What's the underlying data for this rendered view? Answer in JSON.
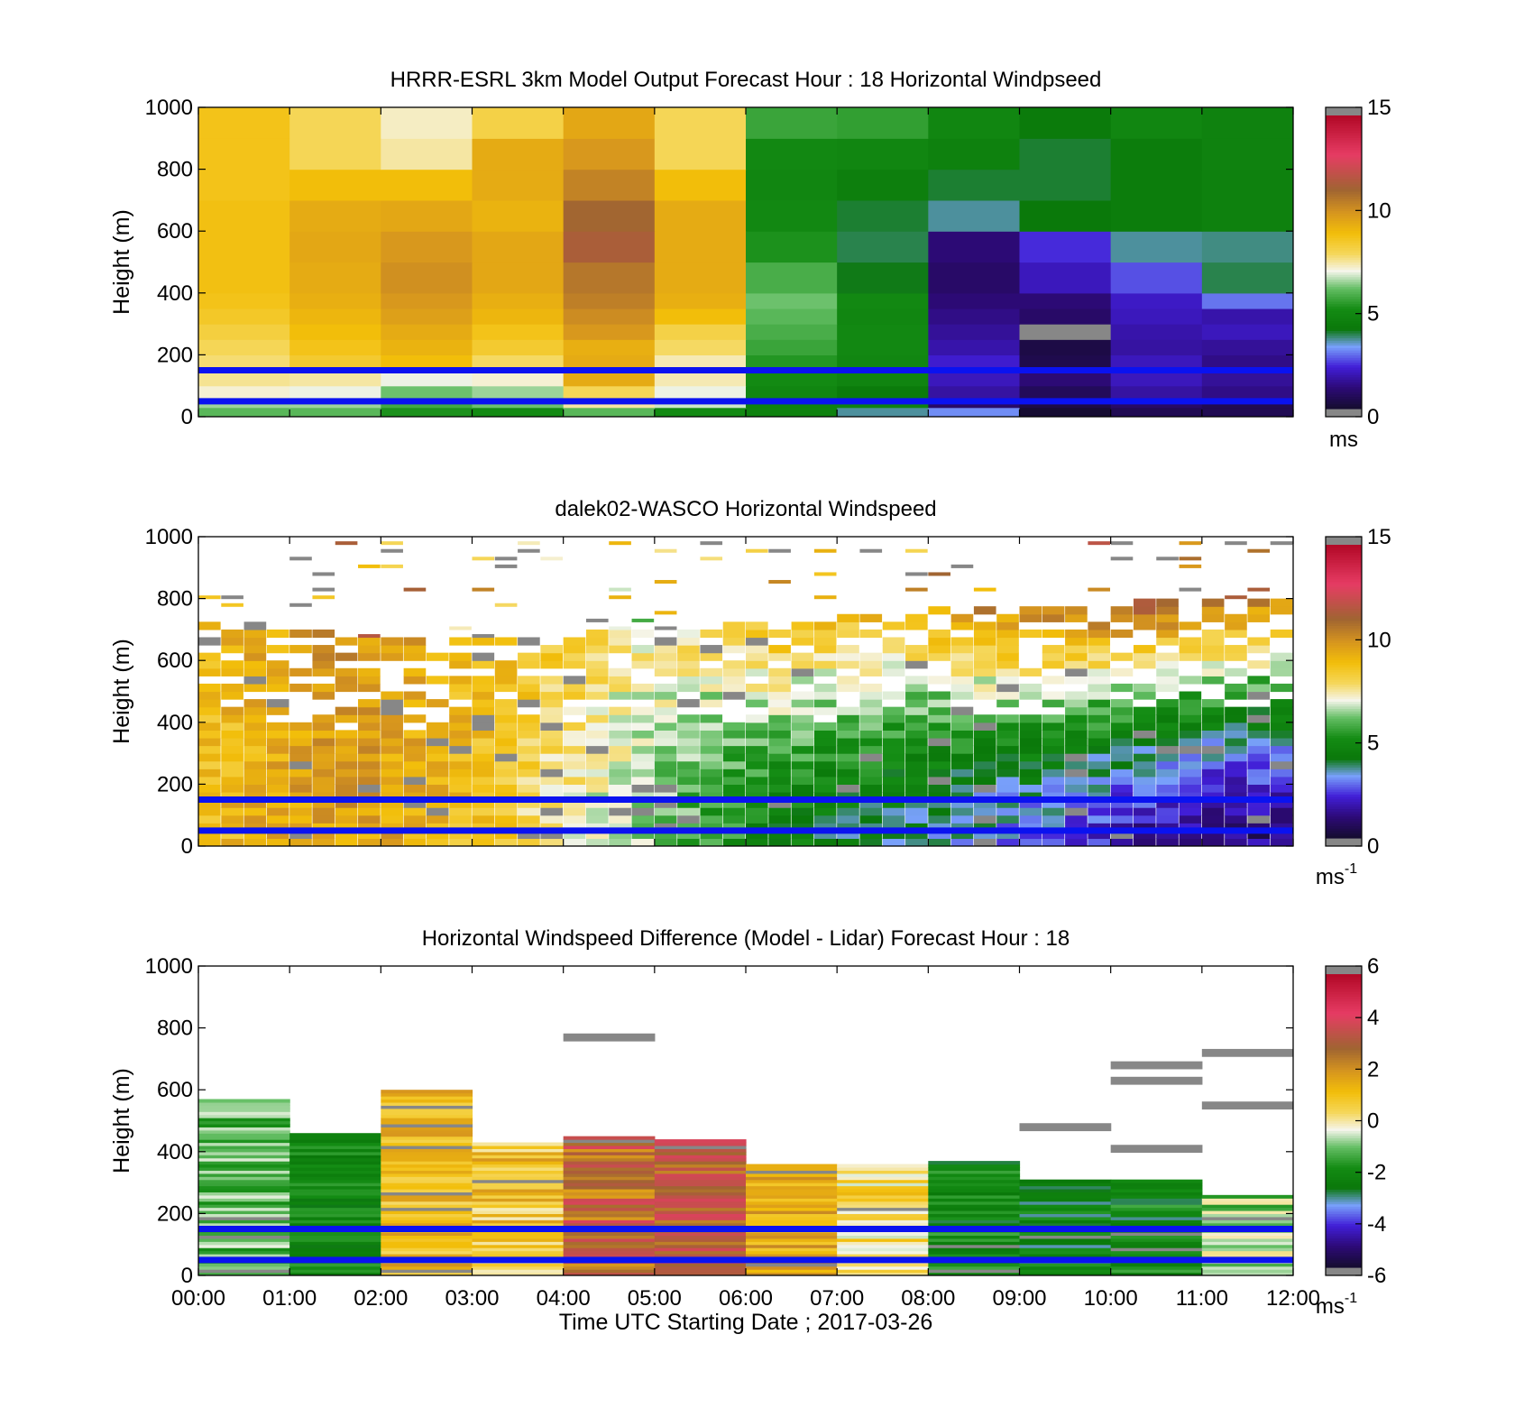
{
  "figure": {
    "xlabel": "Time UTC  Starting Date ; 2017-03-26",
    "x_tick_labels": [
      "00:00",
      "01:00",
      "02:00",
      "03:00",
      "04:00",
      "05:00",
      "06:00",
      "07:00",
      "08:00",
      "09:00",
      "10:00",
      "11:00",
      "12:00"
    ],
    "colors": {
      "reference_line": "#0a12f0",
      "missing": "#878787",
      "background": "#ffffff"
    }
  },
  "chart_data": [
    {
      "type": "heatmap",
      "title": "HRRR-ESRL 3km Model Output   Forecast Hour : 18 Horizontal Windpseed",
      "ylabel": "Height (m)",
      "xlim": [
        0,
        12
      ],
      "ylim": [
        0,
        1000
      ],
      "y_ticks": [
        0,
        200,
        400,
        600,
        800,
        1000
      ],
      "show_x_tick_labels": false,
      "reference_heights": [
        150,
        50
      ],
      "colorbar": {
        "min": 0,
        "max": 15,
        "ticks": [
          0,
          5,
          10,
          15
        ],
        "unit": "ms",
        "unit_exp": ""
      },
      "row_edges": [
        0,
        30,
        60,
        100,
        150,
        200,
        250,
        300,
        350,
        400,
        500,
        600,
        700,
        800,
        900,
        1000
      ],
      "values": [
        [
          6.0,
          6.0,
          5.2,
          5.0,
          6.0,
          5.0,
          4.6,
          3.5,
          3.0,
          0.0,
          0.5,
          0.5
        ],
        [
          6.5,
          6.5,
          5.7,
          6.2,
          7.5,
          6.8,
          4.5,
          4.6,
          0.8,
          0.3,
          0.8,
          0.5
        ],
        [
          7.2,
          7.0,
          6.2,
          6.5,
          8.0,
          7.0,
          4.8,
          4.2,
          1.5,
          0.6,
          1.5,
          1.2
        ],
        [
          7.6,
          7.5,
          7.0,
          7.2,
          9.5,
          7.4,
          5.0,
          4.7,
          1.8,
          1.0,
          1.8,
          1.4
        ],
        [
          7.8,
          8.5,
          9.0,
          7.9,
          9.5,
          7.4,
          5.3,
          4.8,
          2.0,
          0.4,
          1.8,
          1.2
        ],
        [
          8.0,
          8.8,
          9.3,
          8.5,
          9.4,
          7.9,
          5.6,
          4.9,
          1.6,
          0.3,
          1.5,
          1.4
        ],
        [
          8.3,
          9.0,
          9.5,
          8.8,
          10.0,
          8.2,
          5.8,
          4.9,
          1.4,
          null,
          1.6,
          1.8
        ],
        [
          8.6,
          9.2,
          9.8,
          9.2,
          10.3,
          9.0,
          6.0,
          4.8,
          1.2,
          0.8,
          1.8,
          1.6
        ],
        [
          8.8,
          9.4,
          10.0,
          9.4,
          10.6,
          9.4,
          6.2,
          4.9,
          1.0,
          1.0,
          1.9,
          2.8
        ],
        [
          8.9,
          9.5,
          10.2,
          9.6,
          10.8,
          9.5,
          5.8,
          4.0,
          0.8,
          1.8,
          2.5,
          3.8
        ],
        [
          8.9,
          9.6,
          10.0,
          9.6,
          11.5,
          9.5,
          5.2,
          3.8,
          1.0,
          2.2,
          3.5,
          3.6
        ],
        [
          8.9,
          9.5,
          9.6,
          9.3,
          11.2,
          9.5,
          4.9,
          3.9,
          3.5,
          4.1,
          4.3,
          4.5
        ],
        [
          8.8,
          9.0,
          9.0,
          9.5,
          10.5,
          9.0,
          4.8,
          4.4,
          3.9,
          3.9,
          4.3,
          4.5
        ],
        [
          8.8,
          8.0,
          7.5,
          9.5,
          10.0,
          8.0,
          4.9,
          4.8,
          4.5,
          3.9,
          4.3,
          4.6
        ],
        [
          8.8,
          8.0,
          7.3,
          8.2,
          9.6,
          8.0,
          5.6,
          5.5,
          4.8,
          4.2,
          4.8,
          4.6
        ]
      ]
    },
    {
      "type": "heatmap",
      "title": "dalek02-WASCO  Horizontal Windspeed",
      "ylabel": "Height (m)",
      "xlim": [
        0,
        12
      ],
      "ylim": [
        0,
        1000
      ],
      "y_ticks": [
        0,
        200,
        400,
        600,
        800,
        1000
      ],
      "show_x_tick_labels": false,
      "reference_heights": [
        150,
        50
      ],
      "colorbar": {
        "min": 0,
        "max": 15,
        "ticks": [
          0,
          5,
          10,
          15
        ],
        "unit": "ms",
        "unit_exp": "-1"
      },
      "columns_per_hour": 4,
      "row_height": 25,
      "profile": {
        "top_height": [
          720,
          700,
          680,
          650,
          660,
          700,
          690,
          700,
          700,
          740,
          750,
          760,
          760,
          780,
          790,
          800
        ],
        "low_speed": [
          8.8,
          9.5,
          9.8,
          9.4,
          8.6,
          7.5,
          6.5,
          5.5,
          4.5,
          4.0,
          3.5,
          3.0,
          2.5,
          1.5,
          1.2,
          1.0
        ],
        "high_speed": [
          8.8,
          9.5,
          10.2,
          9.8,
          9.0,
          8.5,
          7.5,
          8.0,
          9.0,
          9.0,
          9.5,
          10.5,
          11.0,
          11.5,
          11.0,
          10.5
        ]
      }
    },
    {
      "type": "heatmap",
      "title": "Horizontal Windspeed Difference (Model - Lidar) Forecast Hour : 18",
      "ylabel": "Height (m)",
      "xlim": [
        0,
        12
      ],
      "ylim": [
        0,
        1000
      ],
      "y_ticks": [
        0,
        200,
        400,
        600,
        800,
        1000
      ],
      "show_x_tick_labels": true,
      "reference_heights": [
        150,
        50
      ],
      "colorbar": {
        "min": -6,
        "max": 6,
        "ticks": [
          -6,
          -4,
          -2,
          0,
          2,
          4,
          6
        ],
        "unit": "ms",
        "unit_exp": "-1"
      },
      "hour_blocks": [
        {
          "top": 570,
          "base": -1.2,
          "spread": 0.8
        },
        {
          "top": 460,
          "base": -2.2,
          "spread": 0.6
        },
        {
          "top": 600,
          "base": 1.2,
          "spread": 0.9
        },
        {
          "top": 430,
          "base": 1.0,
          "spread": 1.2
        },
        {
          "top": 450,
          "base": 3.0,
          "spread": 1.2
        },
        {
          "top": 440,
          "base": 3.3,
          "spread": 1.0
        },
        {
          "top": 360,
          "base": 1.6,
          "spread": 0.8
        },
        {
          "top": 360,
          "base": 0.4,
          "spread": 1.0
        },
        {
          "top": 370,
          "base": -2.2,
          "spread": 0.8
        },
        {
          "top": 310,
          "base": -2.5,
          "spread": 0.8
        },
        {
          "top": 310,
          "base": -2.3,
          "spread": 0.9
        },
        {
          "top": 260,
          "base": -0.8,
          "spread": 1.0
        }
      ],
      "missing_segments": [
        {
          "x0": 4.0,
          "x1": 5.0,
          "y": 770
        },
        {
          "x0": 9.0,
          "x1": 10.0,
          "y": 480
        },
        {
          "x0": 10.0,
          "x1": 11.0,
          "y": 680
        },
        {
          "x0": 10.0,
          "x1": 11.0,
          "y": 630
        },
        {
          "x0": 10.0,
          "x1": 11.0,
          "y": 410
        },
        {
          "x0": 11.0,
          "x1": 12.0,
          "y": 720
        },
        {
          "x0": 11.0,
          "x1": 12.0,
          "y": 550
        }
      ]
    }
  ]
}
